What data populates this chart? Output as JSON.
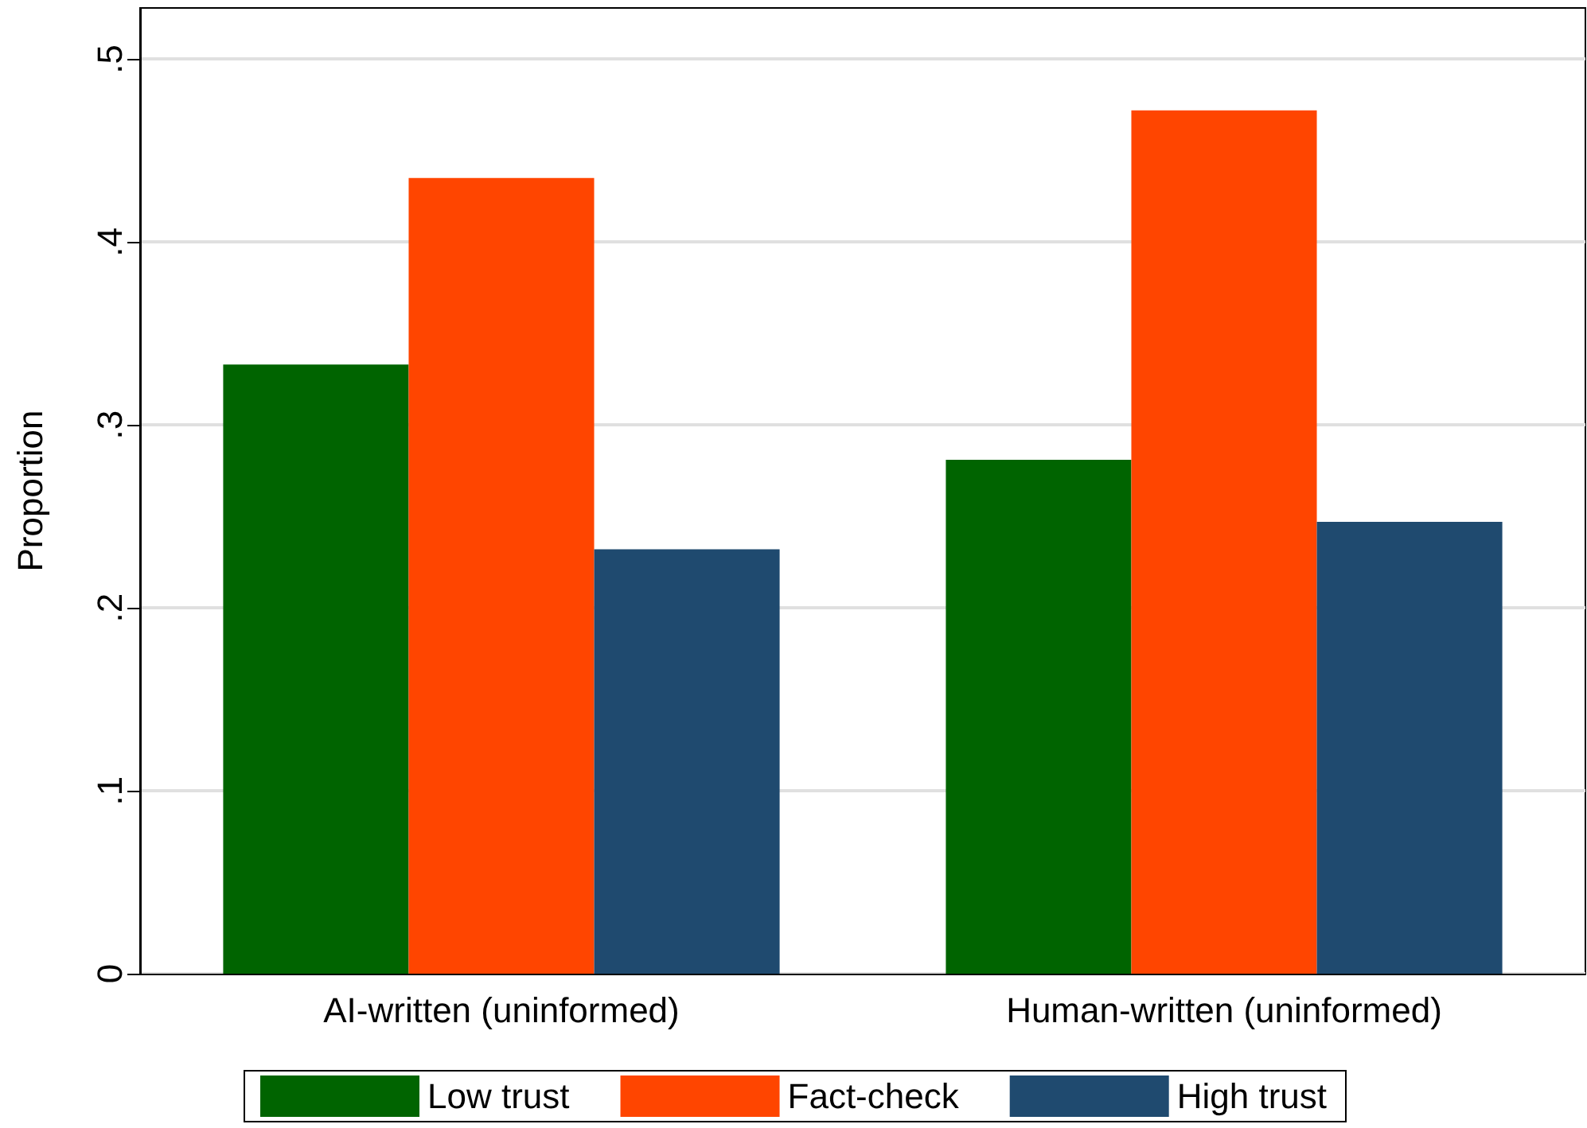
{
  "chart_data": {
    "type": "bar",
    "ylabel": "Proportion",
    "categories": [
      "AI-written (uninformed)",
      "Human-written (uninformed)"
    ],
    "series": [
      {
        "name": "Low trust",
        "color": "#006400",
        "values": [
          0.333,
          0.281
        ]
      },
      {
        "name": "Fact-check",
        "color": "#ff4500",
        "values": [
          0.435,
          0.472
        ]
      },
      {
        "name": "High trust",
        "color": "#1f4a6f",
        "values": [
          0.232,
          0.247
        ]
      }
    ],
    "ylim": [
      0,
      0.528
    ],
    "yticks": [
      {
        "value": 0,
        "label": "0"
      },
      {
        "value": 0.1,
        "label": ".1"
      },
      {
        "value": 0.2,
        "label": ".2"
      },
      {
        "value": 0.3,
        "label": ".3"
      },
      {
        "value": 0.4,
        "label": ".4"
      },
      {
        "value": 0.5,
        "label": ".5"
      }
    ],
    "grid": "y",
    "legend": "bottom"
  }
}
